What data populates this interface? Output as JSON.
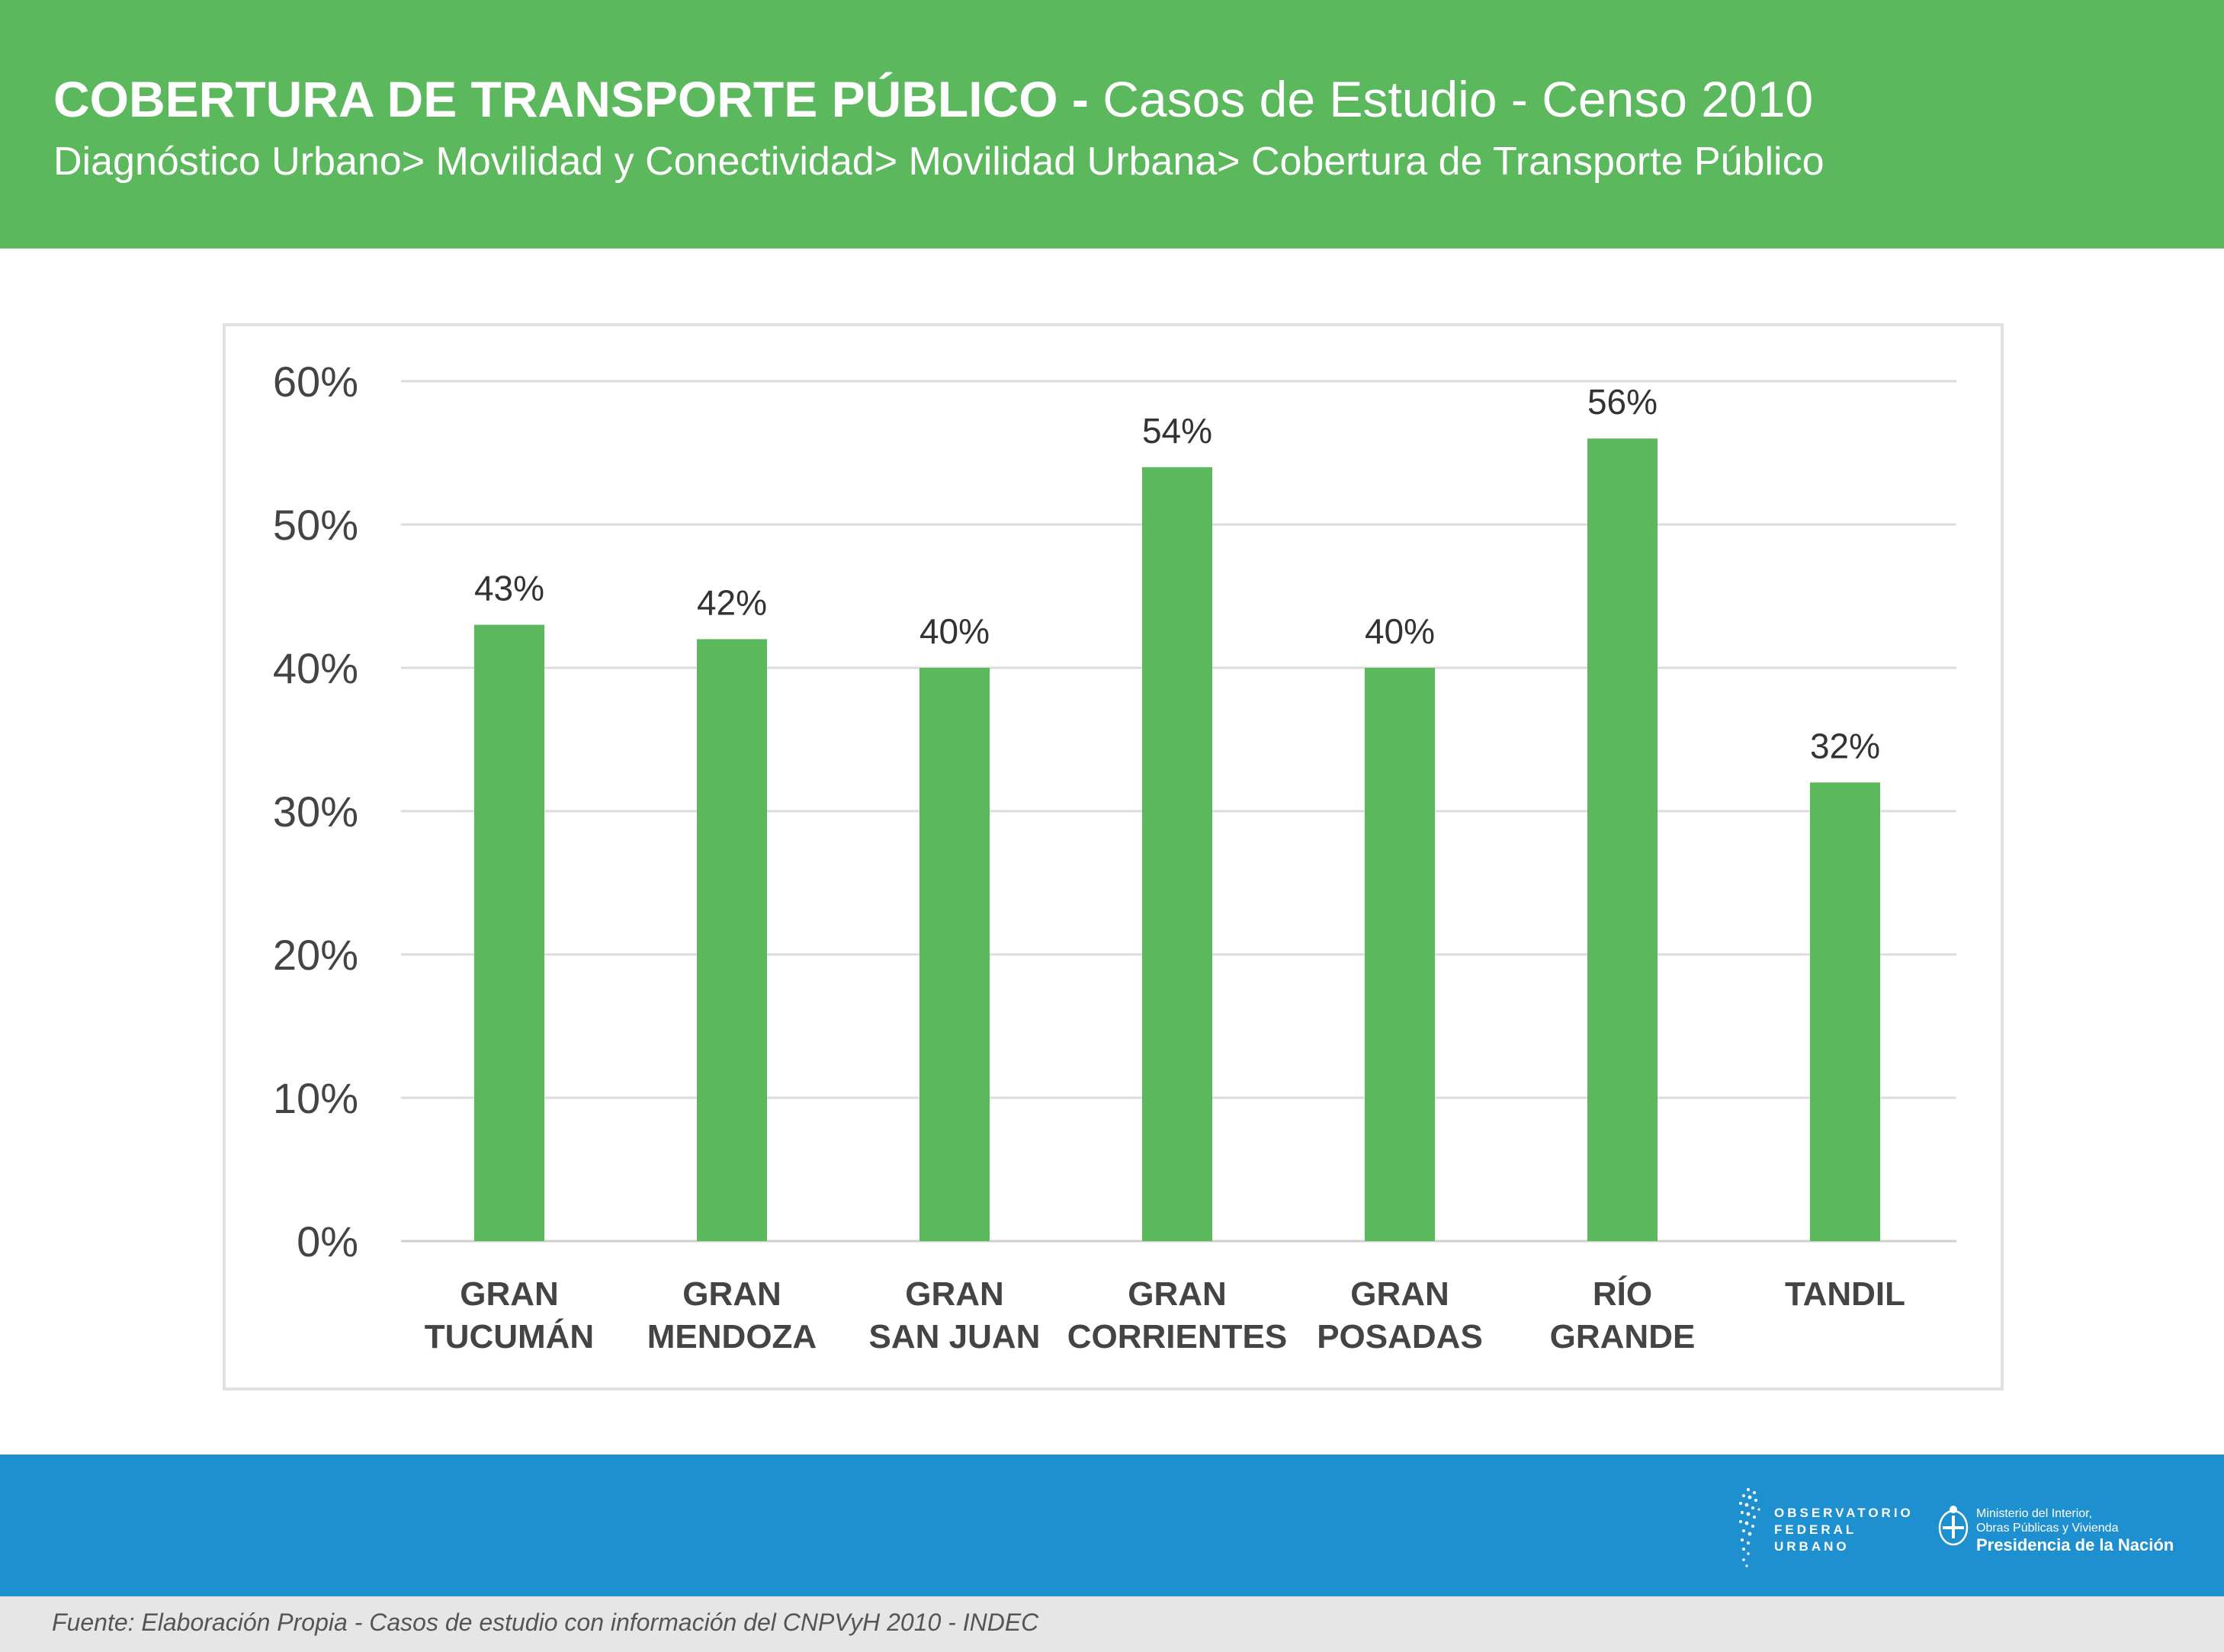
{
  "header": {
    "title_bold": "COBERTURA DE TRANSPORTE PÚBLICO -",
    "title_light": "Casos de Estudio - Censo 2010",
    "subtitle": "Diagnóstico Urbano> Movilidad y Conectividad> Movilidad Urbana> Cobertura de Transporte Público",
    "bg_color": "#5cb85c"
  },
  "chart_data": {
    "type": "bar",
    "categories": [
      [
        "GRAN",
        "TUCUMÁN"
      ],
      [
        "GRAN",
        "MENDOZA"
      ],
      [
        "GRAN",
        "SAN JUAN"
      ],
      [
        "GRAN",
        "CORRIENTES"
      ],
      [
        "GRAN",
        "POSADAS"
      ],
      [
        "RÍO",
        "GRANDE"
      ],
      [
        "TANDIL"
      ]
    ],
    "values": [
      43,
      42,
      40,
      54,
      40,
      56,
      32
    ],
    "data_labels": [
      "43%",
      "42%",
      "40%",
      "54%",
      "40%",
      "56%",
      "32%"
    ],
    "y_ticks": [
      "0%",
      "10%",
      "20%",
      "30%",
      "40%",
      "50%",
      "60%"
    ],
    "ylim": [
      0,
      60
    ],
    "y_unit": "%",
    "grid": true,
    "bar_color": "#5cb85c",
    "title": "",
    "xlabel": "",
    "ylabel": ""
  },
  "footer": {
    "band_color": "#1f90cf",
    "logo_observatorio": [
      "OBSERVATORIO",
      "FEDERAL",
      "URBANO"
    ],
    "logo_ministerio_line1": "Ministerio del Interior,",
    "logo_ministerio_line2": "Obras Públicas y Vivienda",
    "logo_ministerio_line3": "Presidencia de la Nación",
    "source": "Fuente: Elaboración Propia - Casos de estudio con información del CNPVyH 2010 - INDEC"
  }
}
